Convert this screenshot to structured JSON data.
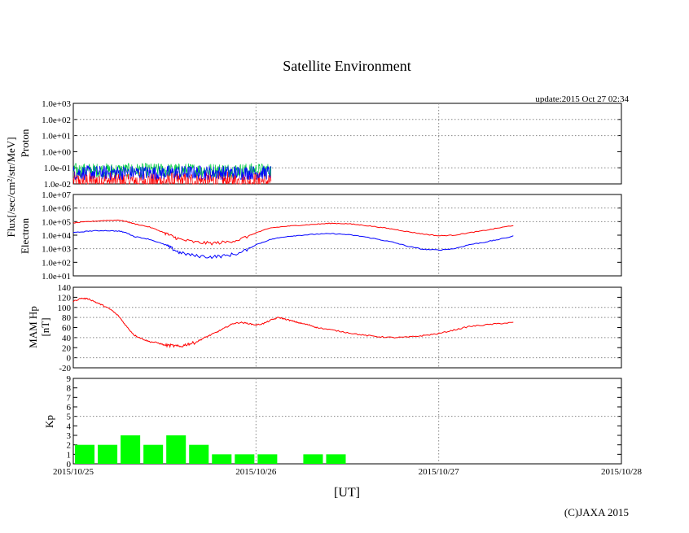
{
  "chart_data": {
    "type": "line",
    "title": "Satellite Environment",
    "update": "update:2015 Oct 27 02:34",
    "copyright": "(C)JAXA 2015",
    "xlabel": "[UT]",
    "x_ticks": [
      "2015/10/25",
      "2015/10/26",
      "2015/10/27",
      "2015/10/28"
    ],
    "x_range_hours": [
      0,
      72
    ],
    "shared_ylabel": "Flux[/sec/cm²/str/MeV]",
    "panels": {
      "proton": {
        "ylabel": "Proton",
        "scale": "log",
        "ylim": [
          0.01,
          1000.0
        ],
        "ticks": [
          "1.0e-02",
          "1.0e-01",
          "1.0e+00",
          "1.0e+01",
          "1.0e+02",
          "1.0e+03"
        ],
        "series": [
          {
            "name": "blue",
            "color": "#0000ff",
            "data_end_hour": 26,
            "baseline": 0.05
          },
          {
            "name": "green",
            "color": "#00cc44",
            "data_end_hour": 26,
            "baseline": 0.07
          },
          {
            "name": "red",
            "color": "#ff0000",
            "data_end_hour": 26,
            "baseline": 0.015
          }
        ]
      },
      "electron": {
        "ylabel": "Electron",
        "scale": "log",
        "ylim": [
          10.0,
          10000000.0
        ],
        "ticks": [
          "1.0e+01",
          "1.0e+02",
          "1.0e+03",
          "1.0e+04",
          "1.0e+05",
          "1.0e+06",
          "1.0e+07"
        ],
        "series": [
          {
            "name": "red",
            "color": "#ff0000",
            "x": [
              0,
              2,
              4,
              6,
              7,
              8,
              10,
              12,
              13,
              14,
              16,
              18,
              20,
              22,
              24,
              26,
              28,
              30,
              32,
              34,
              36,
              38,
              40,
              42,
              44,
              46,
              48,
              50,
              52,
              54,
              56,
              58
            ],
            "y": [
              80000,
              100000,
              120000,
              130000,
              100000,
              70000,
              40000,
              15000,
              8000,
              5000,
              3000,
              2500,
              3000,
              5000,
              15000,
              35000,
              45000,
              55000,
              65000,
              75000,
              70000,
              55000,
              40000,
              28000,
              18000,
              12000,
              9000,
              10000,
              15000,
              22000,
              35000,
              55000
            ]
          },
          {
            "name": "blue",
            "color": "#0000ff",
            "x": [
              0,
              2,
              4,
              6,
              7,
              8,
              10,
              12,
              13,
              14,
              16,
              18,
              20,
              22,
              24,
              26,
              28,
              30,
              32,
              34,
              36,
              38,
              40,
              42,
              44,
              46,
              48,
              50,
              52,
              54,
              56,
              58
            ],
            "y": [
              15000,
              20000,
              22000,
              20000,
              15000,
              8000,
              5000,
              2000,
              1000,
              500,
              300,
              250,
              300,
              500,
              2000,
              5000,
              8000,
              10000,
              12000,
              13000,
              11000,
              8000,
              5000,
              3000,
              1500,
              900,
              800,
              1000,
              2000,
              3000,
              5000,
              9000
            ]
          }
        ]
      },
      "mam_hp": {
        "ylabel": "MAM Hp",
        "unit": "[nT]",
        "ylim": [
          -20,
          140
        ],
        "ticks": [
          "-20",
          "0",
          "20",
          "40",
          "60",
          "80",
          "100",
          "120",
          "140"
        ],
        "series": [
          {
            "name": "Hp",
            "color": "#ff0000",
            "x": [
              0,
              1,
              2,
              3,
              4,
              5,
              6,
              7,
              8,
              9,
              10,
              11,
              12,
              13,
              14,
              15,
              16,
              17,
              18,
              19,
              20,
              21,
              22,
              23,
              24,
              25,
              26,
              27,
              28,
              29,
              30,
              31,
              32,
              34,
              36,
              38,
              40,
              42,
              44,
              46,
              48,
              50,
              52,
              54,
              56,
              58
            ],
            "y": [
              112,
              118,
              117,
              110,
              103,
              95,
              82,
              62,
              45,
              38,
              32,
              30,
              25,
              24,
              22,
              27,
              30,
              38,
              45,
              52,
              60,
              68,
              70,
              68,
              65,
              68,
              75,
              80,
              76,
              72,
              68,
              65,
              60,
              55,
              50,
              45,
              42,
              40,
              41,
              44,
              48,
              55,
              62,
              65,
              68,
              70
            ]
          }
        ]
      },
      "kp": {
        "ylabel": "Kp",
        "ylim": [
          0,
          9
        ],
        "ticks": [
          "0",
          "1",
          "2",
          "3",
          "4",
          "5",
          "6",
          "7",
          "8",
          "9"
        ],
        "bar_color": "#00ff00",
        "bars": [
          2,
          2,
          3,
          2,
          3,
          2,
          1,
          1,
          1,
          0,
          1,
          1
        ],
        "bar_hours": 3
      }
    }
  }
}
